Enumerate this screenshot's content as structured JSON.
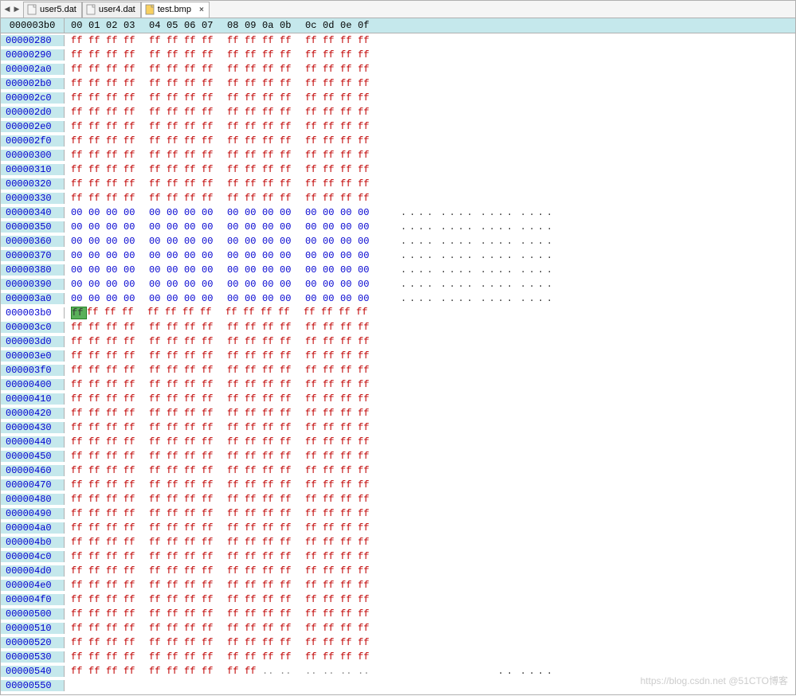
{
  "tabs": [
    {
      "name": "user5.dat",
      "active": false,
      "iconColor": "#f5f5f5"
    },
    {
      "name": "user4.dat",
      "active": false,
      "iconColor": "#f5f5f5"
    },
    {
      "name": "test.bmp",
      "active": true,
      "iconColor": "#f8d060"
    }
  ],
  "header": {
    "offset": "000003b0",
    "cols": [
      "00",
      "01",
      "02",
      "03",
      "",
      "04",
      "05",
      "06",
      "07",
      "",
      "08",
      "09",
      "0a",
      "0b",
      "",
      "0c",
      "0d",
      "0e",
      "0f"
    ]
  },
  "cursor": {
    "row": "000003b0",
    "col": 0
  },
  "rows": [
    {
      "offset": "00000280",
      "type": "ff"
    },
    {
      "offset": "00000290",
      "type": "ff"
    },
    {
      "offset": "000002a0",
      "type": "ff"
    },
    {
      "offset": "000002b0",
      "type": "ff"
    },
    {
      "offset": "000002c0",
      "type": "ff"
    },
    {
      "offset": "000002d0",
      "type": "ff"
    },
    {
      "offset": "000002e0",
      "type": "ff"
    },
    {
      "offset": "000002f0",
      "type": "ff"
    },
    {
      "offset": "00000300",
      "type": "ff"
    },
    {
      "offset": "00000310",
      "type": "ff"
    },
    {
      "offset": "00000320",
      "type": "ff"
    },
    {
      "offset": "00000330",
      "type": "ff"
    },
    {
      "offset": "00000340",
      "type": "00"
    },
    {
      "offset": "00000350",
      "type": "00"
    },
    {
      "offset": "00000360",
      "type": "00"
    },
    {
      "offset": "00000370",
      "type": "00"
    },
    {
      "offset": "00000380",
      "type": "00"
    },
    {
      "offset": "00000390",
      "type": "00"
    },
    {
      "offset": "000003a0",
      "type": "00"
    },
    {
      "offset": "000003b0",
      "type": "ff",
      "cursor": true
    },
    {
      "offset": "000003c0",
      "type": "ff"
    },
    {
      "offset": "000003d0",
      "type": "ff"
    },
    {
      "offset": "000003e0",
      "type": "ff"
    },
    {
      "offset": "000003f0",
      "type": "ff"
    },
    {
      "offset": "00000400",
      "type": "ff"
    },
    {
      "offset": "00000410",
      "type": "ff"
    },
    {
      "offset": "00000420",
      "type": "ff"
    },
    {
      "offset": "00000430",
      "type": "ff"
    },
    {
      "offset": "00000440",
      "type": "ff"
    },
    {
      "offset": "00000450",
      "type": "ff"
    },
    {
      "offset": "00000460",
      "type": "ff"
    },
    {
      "offset": "00000470",
      "type": "ff"
    },
    {
      "offset": "00000480",
      "type": "ff"
    },
    {
      "offset": "00000490",
      "type": "ff"
    },
    {
      "offset": "000004a0",
      "type": "ff"
    },
    {
      "offset": "000004b0",
      "type": "ff"
    },
    {
      "offset": "000004c0",
      "type": "ff"
    },
    {
      "offset": "000004d0",
      "type": "ff"
    },
    {
      "offset": "000004e0",
      "type": "ff"
    },
    {
      "offset": "000004f0",
      "type": "ff"
    },
    {
      "offset": "00000500",
      "type": "ff"
    },
    {
      "offset": "00000510",
      "type": "ff"
    },
    {
      "offset": "00000520",
      "type": "ff"
    },
    {
      "offset": "00000530",
      "type": "ff"
    },
    {
      "offset": "00000540",
      "type": "ff-partial"
    },
    {
      "offset": "00000550",
      "type": "empty"
    }
  ],
  "colors": {
    "headerBg": "#c5e8ec",
    "offsetBg": "#c5e8ec",
    "ffColor": "#c00000",
    "zeroColor": "#0000d0",
    "cursorBg": "#5ab05a",
    "cursorBorder": "#258025",
    "asciiCursorBg": "#8fce8f",
    "border": "#b0b0b0"
  },
  "watermark": "https://blog.csdn.net @51CTO博客"
}
